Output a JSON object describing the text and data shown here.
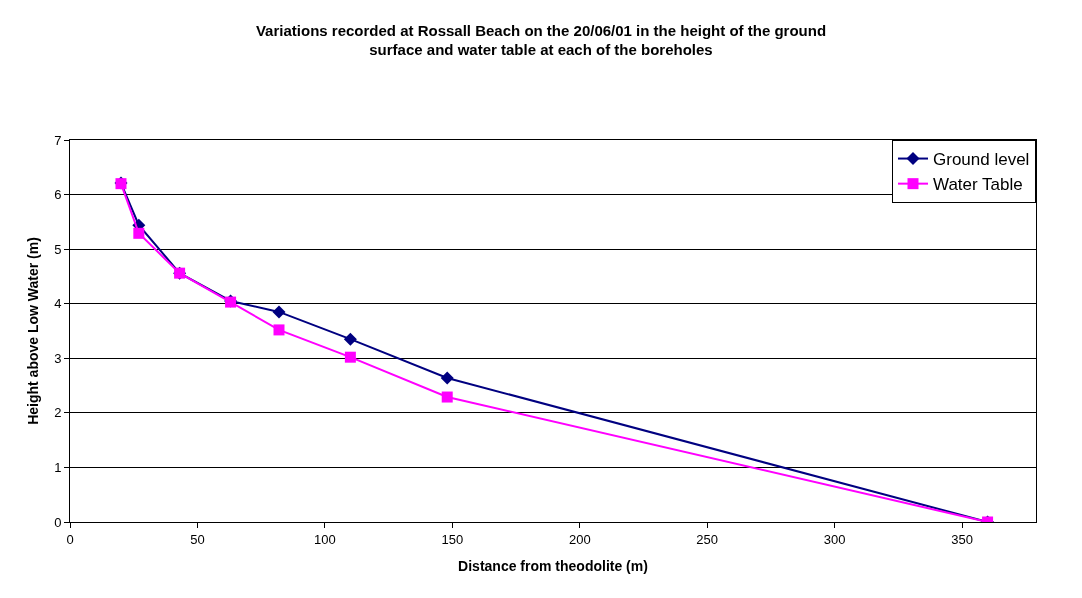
{
  "chart_data": {
    "type": "line",
    "title": "Variations recorded at Rossall Beach on the 20/06/01 in the height of the ground surface and water table at each of the boreholes",
    "xlabel": "Distance from theodolite (m)",
    "ylabel": "Height above Low Water (m)",
    "series": [
      {
        "name": "Ground level",
        "color": "#000080",
        "marker": "diamond",
        "x": [
          20,
          27,
          43,
          63,
          82,
          110,
          148,
          360
        ],
        "values": [
          6.21,
          5.44,
          4.56,
          4.05,
          3.85,
          3.35,
          2.64,
          0
        ]
      },
      {
        "name": "Water Table",
        "color": "#ff00ff",
        "marker": "square",
        "x": [
          20,
          27,
          43,
          63,
          82,
          110,
          148,
          360
        ],
        "values": [
          6.2,
          5.29,
          4.56,
          4.03,
          3.52,
          3.02,
          2.29,
          0
        ]
      }
    ],
    "xlim": [
      0,
      379
    ],
    "xticks": [
      0,
      50,
      100,
      150,
      200,
      250,
      300,
      350
    ],
    "ylim": [
      0,
      7
    ],
    "yticks": [
      0,
      1,
      2,
      3,
      4,
      5,
      6,
      7
    ],
    "grid": "y",
    "legend": "top right"
  }
}
